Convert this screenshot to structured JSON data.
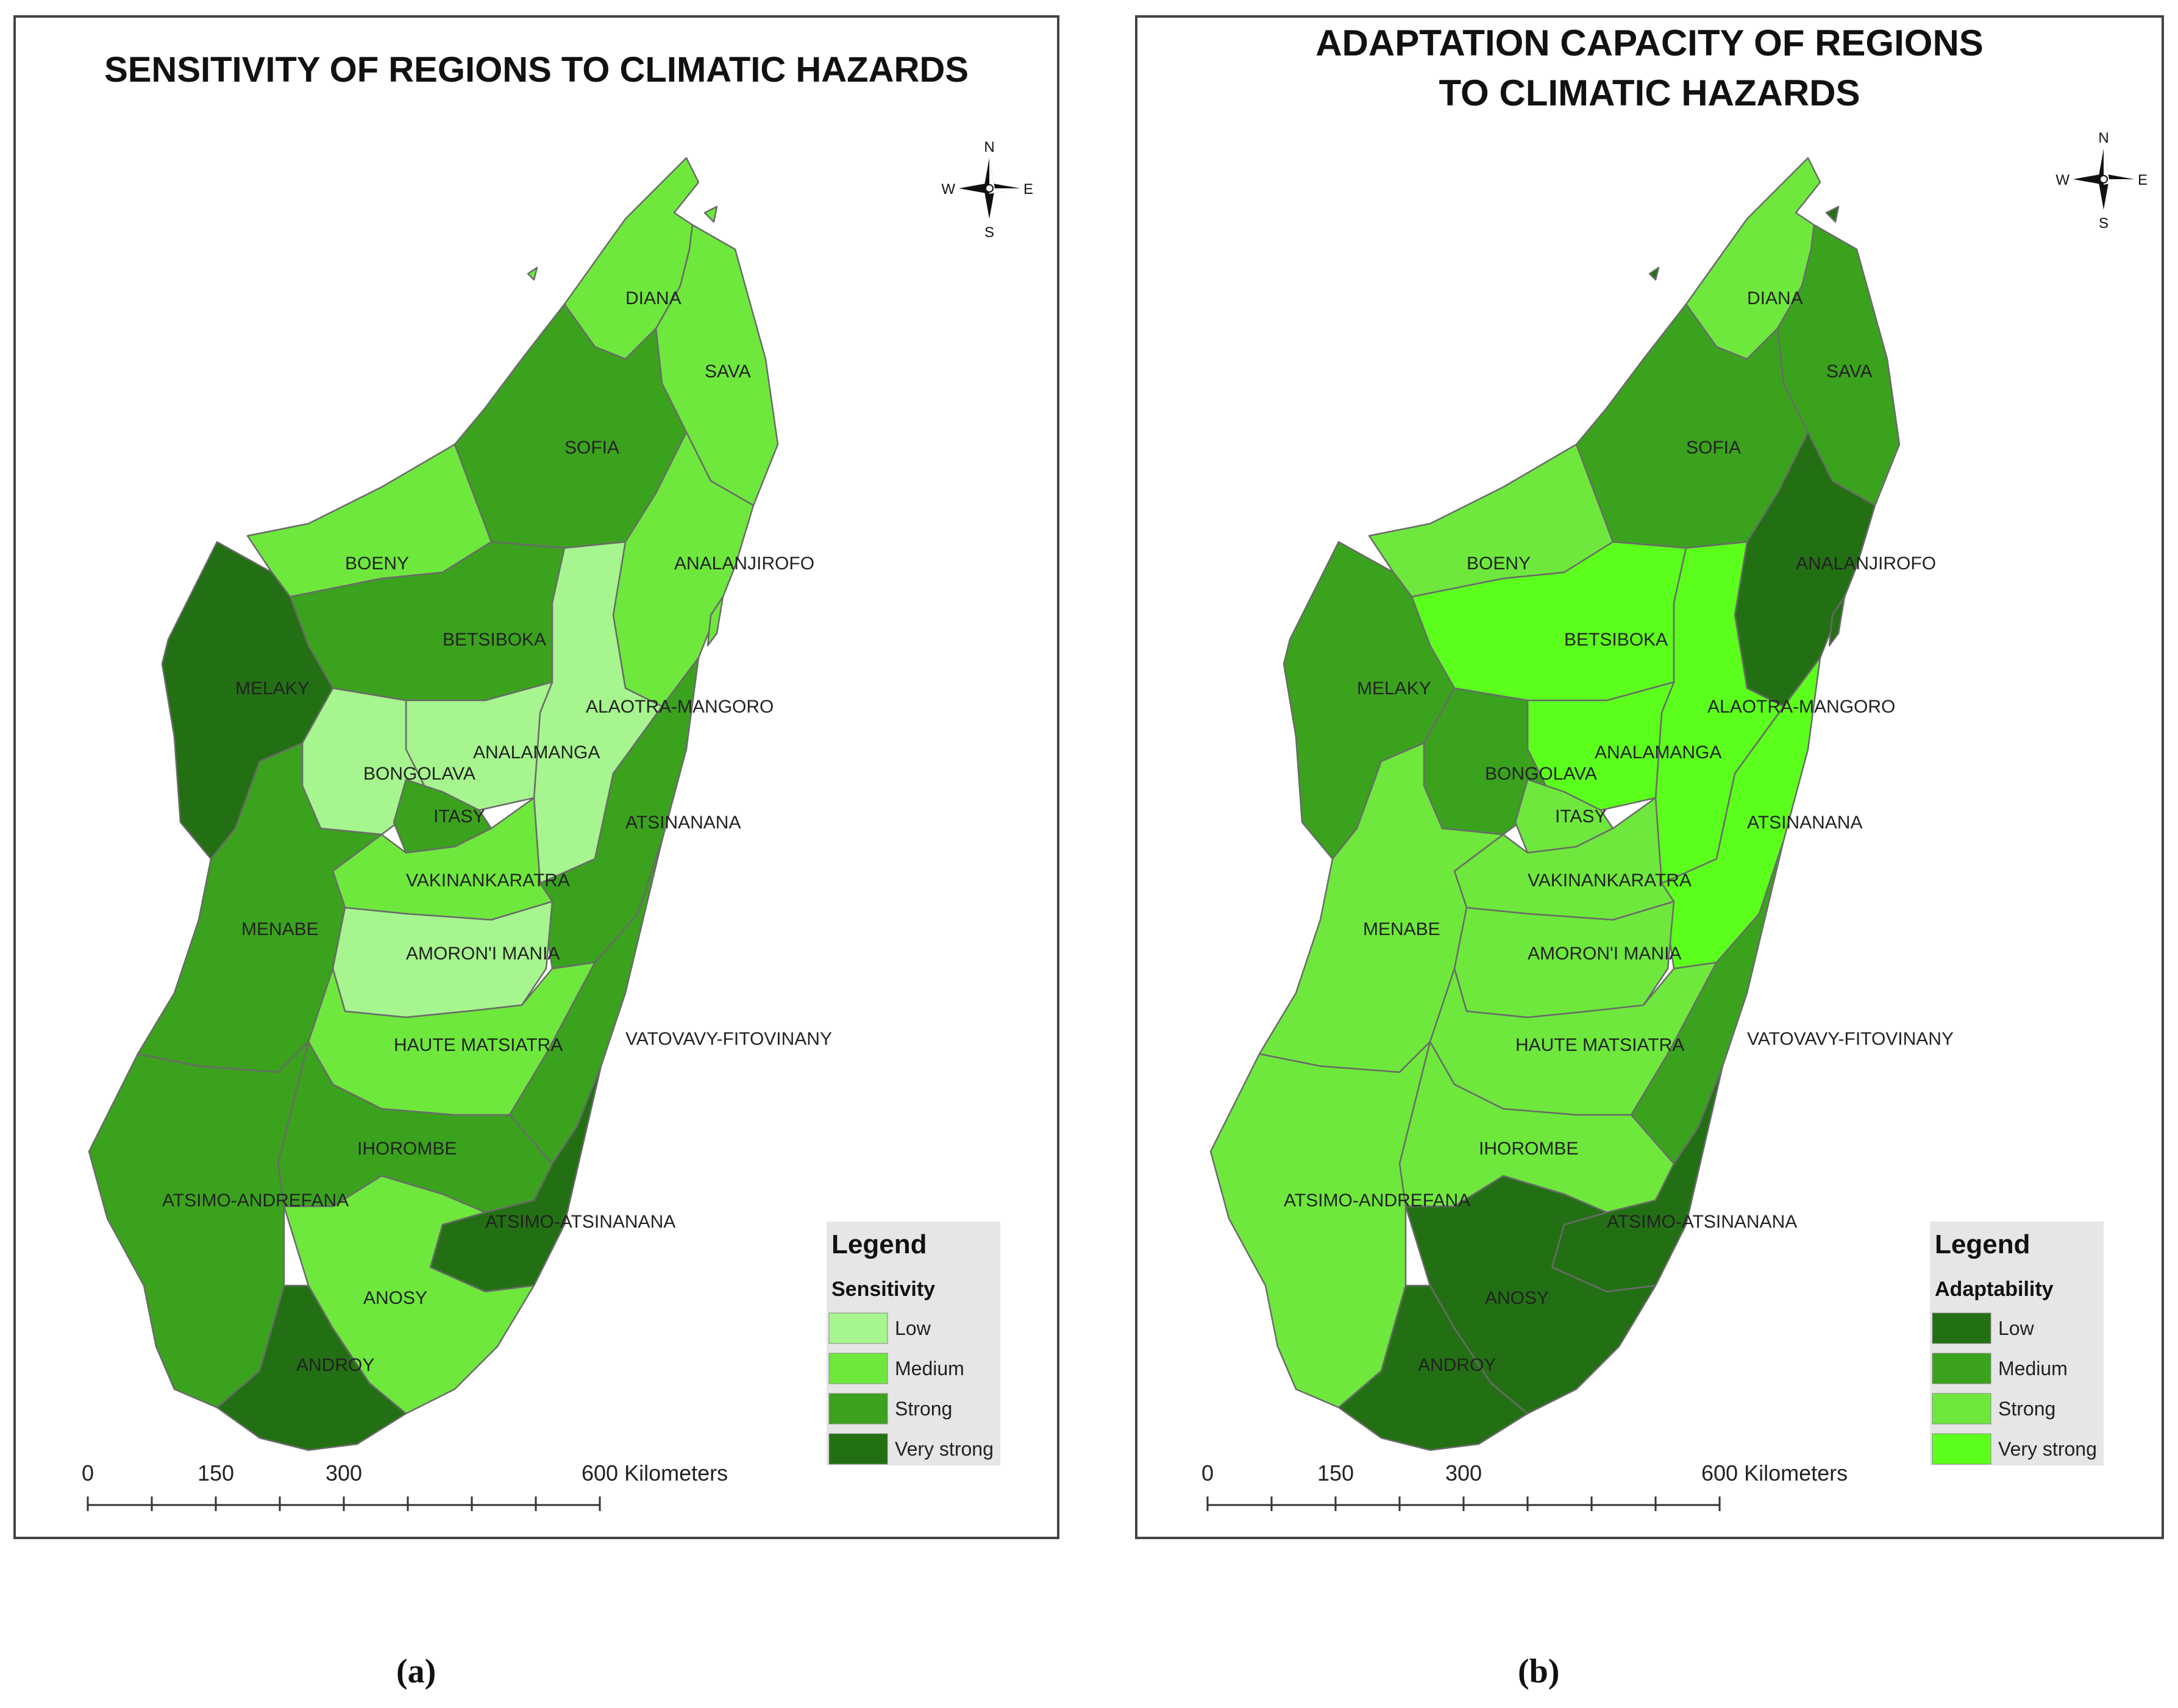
{
  "panels": [
    {
      "id": "a",
      "title_lines": [
        "SENSITIVITY OF REGIONS TO CLIMATIC HAZARDS"
      ],
      "legend": {
        "title": "Legend",
        "subtitle": "Sensitivity",
        "items": [
          {
            "label": "Low",
            "color": "#a6f58e"
          },
          {
            "label": "Medium",
            "color": "#6ee83c"
          },
          {
            "label": "Strong",
            "color": "#3ba21e"
          },
          {
            "label": "Very strong",
            "color": "#237014"
          }
        ]
      },
      "regions": [
        {
          "name": "DIANA",
          "level": "Medium"
        },
        {
          "name": "SAVA",
          "level": "Medium"
        },
        {
          "name": "SOFIA",
          "level": "Strong"
        },
        {
          "name": "BOENY",
          "level": "Medium"
        },
        {
          "name": "ANALANJIROFO",
          "level": "Medium"
        },
        {
          "name": "BETSIBOKA",
          "level": "Strong"
        },
        {
          "name": "MELAKY",
          "level": "Very strong"
        },
        {
          "name": "ALAOTRA-MANGORO",
          "level": "Low"
        },
        {
          "name": "ANALAMANGA",
          "level": "Low"
        },
        {
          "name": "BONGOLAVA",
          "level": "Low"
        },
        {
          "name": "ITASY",
          "level": "Strong"
        },
        {
          "name": "ATSINANANA",
          "level": "Strong"
        },
        {
          "name": "VAKINANKARATRA",
          "level": "Medium"
        },
        {
          "name": "MENABE",
          "level": "Strong"
        },
        {
          "name": "AMORON'I MANIA",
          "level": "Low"
        },
        {
          "name": "HAUTE MATSIATRA",
          "level": "Medium"
        },
        {
          "name": "VATOVAVY-FITOVINANY",
          "level": "Strong"
        },
        {
          "name": "IHOROMBE",
          "level": "Strong"
        },
        {
          "name": "ATSIMO-ANDREFANA",
          "level": "Strong"
        },
        {
          "name": "ATSIMO-ATSINANANA",
          "level": "Very strong"
        },
        {
          "name": "ANOSY",
          "level": "Medium"
        },
        {
          "name": "ANDROY",
          "level": "Very strong"
        }
      ]
    },
    {
      "id": "b",
      "title_lines": [
        "ADAPTATION CAPACITY OF REGIONS",
        "TO CLIMATIC HAZARDS"
      ],
      "legend": {
        "title": "Legend",
        "subtitle": "Adaptability",
        "items": [
          {
            "label": "Low",
            "color": "#237014"
          },
          {
            "label": "Medium",
            "color": "#3ba21e"
          },
          {
            "label": "Strong",
            "color": "#6ee83c"
          },
          {
            "label": "Very strong",
            "color": "#5cff1c"
          }
        ]
      },
      "regions": [
        {
          "name": "DIANA",
          "level": "Strong"
        },
        {
          "name": "SAVA",
          "level": "Medium"
        },
        {
          "name": "SOFIA",
          "level": "Medium"
        },
        {
          "name": "BOENY",
          "level": "Strong"
        },
        {
          "name": "ANALANJIROFO",
          "level": "Low"
        },
        {
          "name": "BETSIBOKA",
          "level": "Very strong"
        },
        {
          "name": "MELAKY",
          "level": "Medium"
        },
        {
          "name": "ALAOTRA-MANGORO",
          "level": "Very strong"
        },
        {
          "name": "ANALAMANGA",
          "level": "Very strong"
        },
        {
          "name": "BONGOLAVA",
          "level": "Medium"
        },
        {
          "name": "ITASY",
          "level": "Strong"
        },
        {
          "name": "ATSINANANA",
          "level": "Very strong"
        },
        {
          "name": "VAKINANKARATRA",
          "level": "Strong"
        },
        {
          "name": "MENABE",
          "level": "Strong"
        },
        {
          "name": "AMORON'I MANIA",
          "level": "Strong"
        },
        {
          "name": "HAUTE MATSIATRA",
          "level": "Strong"
        },
        {
          "name": "VATOVAVY-FITOVINANY",
          "level": "Medium"
        },
        {
          "name": "IHOROMBE",
          "level": "Strong"
        },
        {
          "name": "ATSIMO-ANDREFANA",
          "level": "Strong"
        },
        {
          "name": "ATSIMO-ATSINANANA",
          "level": "Low"
        },
        {
          "name": "ANOSY",
          "level": "Low"
        },
        {
          "name": "ANDROY",
          "level": "Low"
        }
      ]
    }
  ],
  "scale_bar": {
    "ticks": [
      "0",
      "150",
      "300"
    ],
    "end_label": "600 Kilometers"
  },
  "compass": {
    "n": "N",
    "s": "S",
    "e": "E",
    "w": "W"
  },
  "captions": [
    "(a)",
    "(b)"
  ]
}
